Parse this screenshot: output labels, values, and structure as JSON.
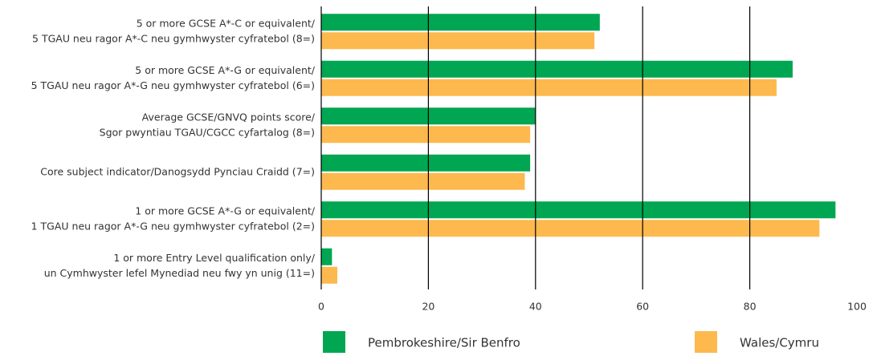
{
  "chart_data": {
    "type": "barh",
    "categories": [
      [
        "5 or more GCSE A*-C or equivalent/",
        "5 TGAU neu ragor A*-C neu gymhwyster cyfratebol (8=)"
      ],
      [
        "5 or more GCSE A*-G or equivalent/",
        "5 TGAU neu ragor A*-G neu gymhwyster cyfratebol (6=)"
      ],
      [
        "Average GCSE/GNVQ points score/",
        "Sgor pwyntiau TGAU/CGCC cyfartalog (8=)"
      ],
      [
        "Core subject indicator/Danogsydd Pynciau Craidd (7=)"
      ],
      [
        "1 or more GCSE A*-G or equivalent/",
        "1 TGAU neu ragor A*-G neu gymhwyster cyfratebol (2=)"
      ],
      [
        "1 or more Entry Level qualification only/",
        "un Cymhwyster lefel Mynediad neu fwy yn unig (11=)"
      ]
    ],
    "series": [
      {
        "name": "Pembrokeshire/Sir Benfro",
        "color": "#00a651",
        "values": [
          52,
          88,
          40,
          39,
          96,
          2
        ]
      },
      {
        "name": "Wales/Cymru",
        "color": "#fdb94e",
        "values": [
          51,
          85,
          39,
          38,
          93,
          3
        ]
      }
    ],
    "xlim": [
      0,
      100
    ],
    "xticks": [
      0,
      20,
      40,
      60,
      80,
      100
    ],
    "grid": true
  }
}
